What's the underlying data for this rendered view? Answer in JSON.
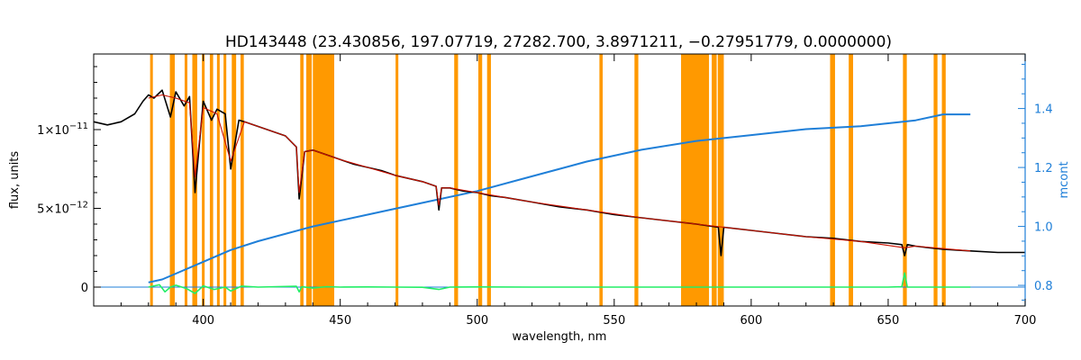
{
  "chart_data": {
    "type": "line",
    "title": "HD143448    (23.430856, 197.07719, 27282.700, 3.8971211, −0.27951779, 0.0000000)",
    "xlabel": "wavelength, nm",
    "ylabel": "flux, units",
    "y2label": "mcont",
    "xlim": [
      360,
      700
    ],
    "ylim": [
      -1.2e-12,
      1.48e-11
    ],
    "y2lim": [
      0.73,
      1.585
    ],
    "x_ticks": [
      400,
      450,
      500,
      550,
      600,
      650,
      700
    ],
    "x_tick_labels": [
      "400",
      "450",
      "500",
      "550",
      "600",
      "650",
      "700"
    ],
    "y_ticks": [
      0,
      5e-12,
      1e-11
    ],
    "y_tick_labels": [
      {
        "base": "0",
        "exp": ""
      },
      {
        "base": "5×10",
        "exp": "−12"
      },
      {
        "base": "1×10",
        "exp": "−11"
      }
    ],
    "y2_ticks": [
      0.8,
      1.0,
      1.2,
      1.4
    ],
    "y2_tick_labels": [
      "0.8",
      "1.0",
      "1.2",
      "1.4"
    ],
    "grid": false,
    "legend": "none",
    "colors": {
      "observed": "#000000",
      "model": "#cc1100",
      "residual": "#22ee66",
      "mcont": "#1f7fd8",
      "masked": "#ff9900",
      "axis2": "#1f7fd8"
    },
    "masked_regions": [
      [
        380.6,
        381.6
      ],
      [
        387.8,
        389.6
      ],
      [
        393.2,
        394.2
      ],
      [
        396.0,
        397.8
      ],
      [
        399.5,
        400.5
      ],
      [
        402.4,
        403.6
      ],
      [
        405.0,
        406.0
      ],
      [
        407.4,
        408.4
      ],
      [
        410.4,
        412.0
      ],
      [
        413.6,
        414.8
      ],
      [
        435.4,
        436.6
      ],
      [
        437.6,
        439.6
      ],
      [
        440.0,
        447.8
      ],
      [
        470.2,
        471.2
      ],
      [
        491.6,
        493.0
      ],
      [
        500.4,
        501.8
      ],
      [
        503.6,
        505.0
      ],
      [
        544.6,
        545.8
      ],
      [
        557.4,
        558.8
      ],
      [
        574.4,
        584.6
      ],
      [
        585.6,
        587.4
      ],
      [
        587.8,
        590.0
      ],
      [
        628.8,
        630.6
      ],
      [
        635.6,
        637.2
      ],
      [
        655.4,
        656.8
      ],
      [
        666.6,
        668.0
      ],
      [
        669.6,
        671.0
      ]
    ],
    "series": [
      {
        "role": "observed",
        "x": [
          360,
          365,
          370,
          375,
          378,
          380,
          382,
          385,
          388,
          390,
          393,
          395,
          397,
          400,
          403,
          405,
          408,
          410,
          413,
          415,
          420,
          425,
          430,
          434,
          435,
          437,
          440,
          445,
          450,
          455,
          460,
          465,
          470,
          475,
          480,
          485,
          486,
          487,
          490,
          495,
          500,
          505,
          510,
          520,
          530,
          540,
          550,
          560,
          570,
          580,
          588,
          589,
          590,
          600,
          610,
          620,
          630,
          640,
          650,
          655,
          656,
          657,
          660,
          665,
          670,
          680,
          690,
          700
        ],
        "y": [
          1.05e-11,
          1.03e-11,
          1.05e-11,
          1.1e-11,
          1.18e-11,
          1.22e-11,
          1.2e-11,
          1.25e-11,
          1.08e-11,
          1.24e-11,
          1.15e-11,
          1.21e-11,
          6e-12,
          1.18e-11,
          1.06e-11,
          1.13e-11,
          1.1e-11,
          7.5e-12,
          1.06e-11,
          1.05e-11,
          1.02e-11,
          9.9e-12,
          9.6e-12,
          8.9e-12,
          5.6e-12,
          8.6e-12,
          8.7e-12,
          8.4e-12,
          8.1e-12,
          7.8e-12,
          7.6e-12,
          7.4e-12,
          7.1e-12,
          6.9e-12,
          6.7e-12,
          6.4e-12,
          4.9e-12,
          6.3e-12,
          6.3e-12,
          6.1e-12,
          6e-12,
          5.8e-12,
          5.7e-12,
          5.4e-12,
          5.1e-12,
          4.9e-12,
          4.6e-12,
          4.4e-12,
          4.2e-12,
          4e-12,
          3.8e-12,
          2e-12,
          3.8e-12,
          3.6e-12,
          3.4e-12,
          3.2e-12,
          3.1e-12,
          2.9e-12,
          2.8e-12,
          2.7e-12,
          2e-12,
          2.7e-12,
          2.6e-12,
          2.5e-12,
          2.4e-12,
          2.3e-12,
          2.2e-12,
          2.2e-12
        ]
      },
      {
        "role": "model",
        "x": [
          380,
          385,
          390,
          395,
          397,
          400,
          405,
          410,
          415,
          420,
          430,
          434,
          435,
          437,
          440,
          450,
          460,
          470,
          480,
          485,
          486,
          487,
          490,
          500,
          510,
          520,
          540,
          560,
          580,
          600,
          620,
          640,
          656,
          660,
          680
        ],
        "y": [
          1.2e-11,
          1.22e-11,
          1.2e-11,
          1.17e-11,
          7e-12,
          1.14e-11,
          1.1e-11,
          8e-12,
          1.05e-11,
          1.02e-11,
          9.6e-12,
          8.9e-12,
          6e-12,
          8.6e-12,
          8.7e-12,
          8.1e-12,
          7.6e-12,
          7.1e-12,
          6.7e-12,
          6.4e-12,
          5.2e-12,
          6.3e-12,
          6.3e-12,
          6e-12,
          5.7e-12,
          5.4e-12,
          4.9e-12,
          4.4e-12,
          4e-12,
          3.6e-12,
          3.2e-12,
          2.9e-12,
          2.5e-12,
          2.6e-12,
          2.3e-12
        ]
      },
      {
        "role": "residual",
        "x": [
          380,
          384,
          386,
          388,
          390,
          394,
          397,
          400,
          404,
          408,
          410,
          414,
          420,
          434,
          435,
          436,
          440,
          445,
          450,
          460,
          470,
          480,
          486,
          490,
          500,
          520,
          540,
          560,
          574,
          586,
          600,
          620,
          640,
          650,
          655,
          656,
          657,
          660,
          680
        ],
        "y": [
          0,
          1.5e-13,
          -3e-13,
          0,
          1.2e-13,
          -1e-13,
          -4e-13,
          8e-14,
          -1.5e-13,
          0,
          -2.5e-13,
          6e-14,
          0,
          5e-14,
          -3e-13,
          2e-14,
          -6e-14,
          3e-14,
          0,
          1e-14,
          0,
          -1e-14,
          -1.5e-13,
          0,
          1e-14,
          0,
          0,
          0,
          0,
          0,
          0,
          0,
          0,
          0,
          2e-14,
          9e-13,
          0,
          0,
          0
        ]
      },
      {
        "role": "mcont",
        "axis": "right",
        "x": [
          380,
          385,
          390,
          400,
          410,
          420,
          440,
          460,
          480,
          500,
          520,
          540,
          560,
          580,
          600,
          620,
          640,
          660,
          670,
          680
        ],
        "y": [
          0.81,
          0.82,
          0.84,
          0.88,
          0.92,
          0.95,
          1.0,
          1.04,
          1.08,
          1.12,
          1.17,
          1.22,
          1.26,
          1.29,
          1.31,
          1.33,
          1.34,
          1.36,
          1.38,
          1.38
        ]
      }
    ]
  }
}
